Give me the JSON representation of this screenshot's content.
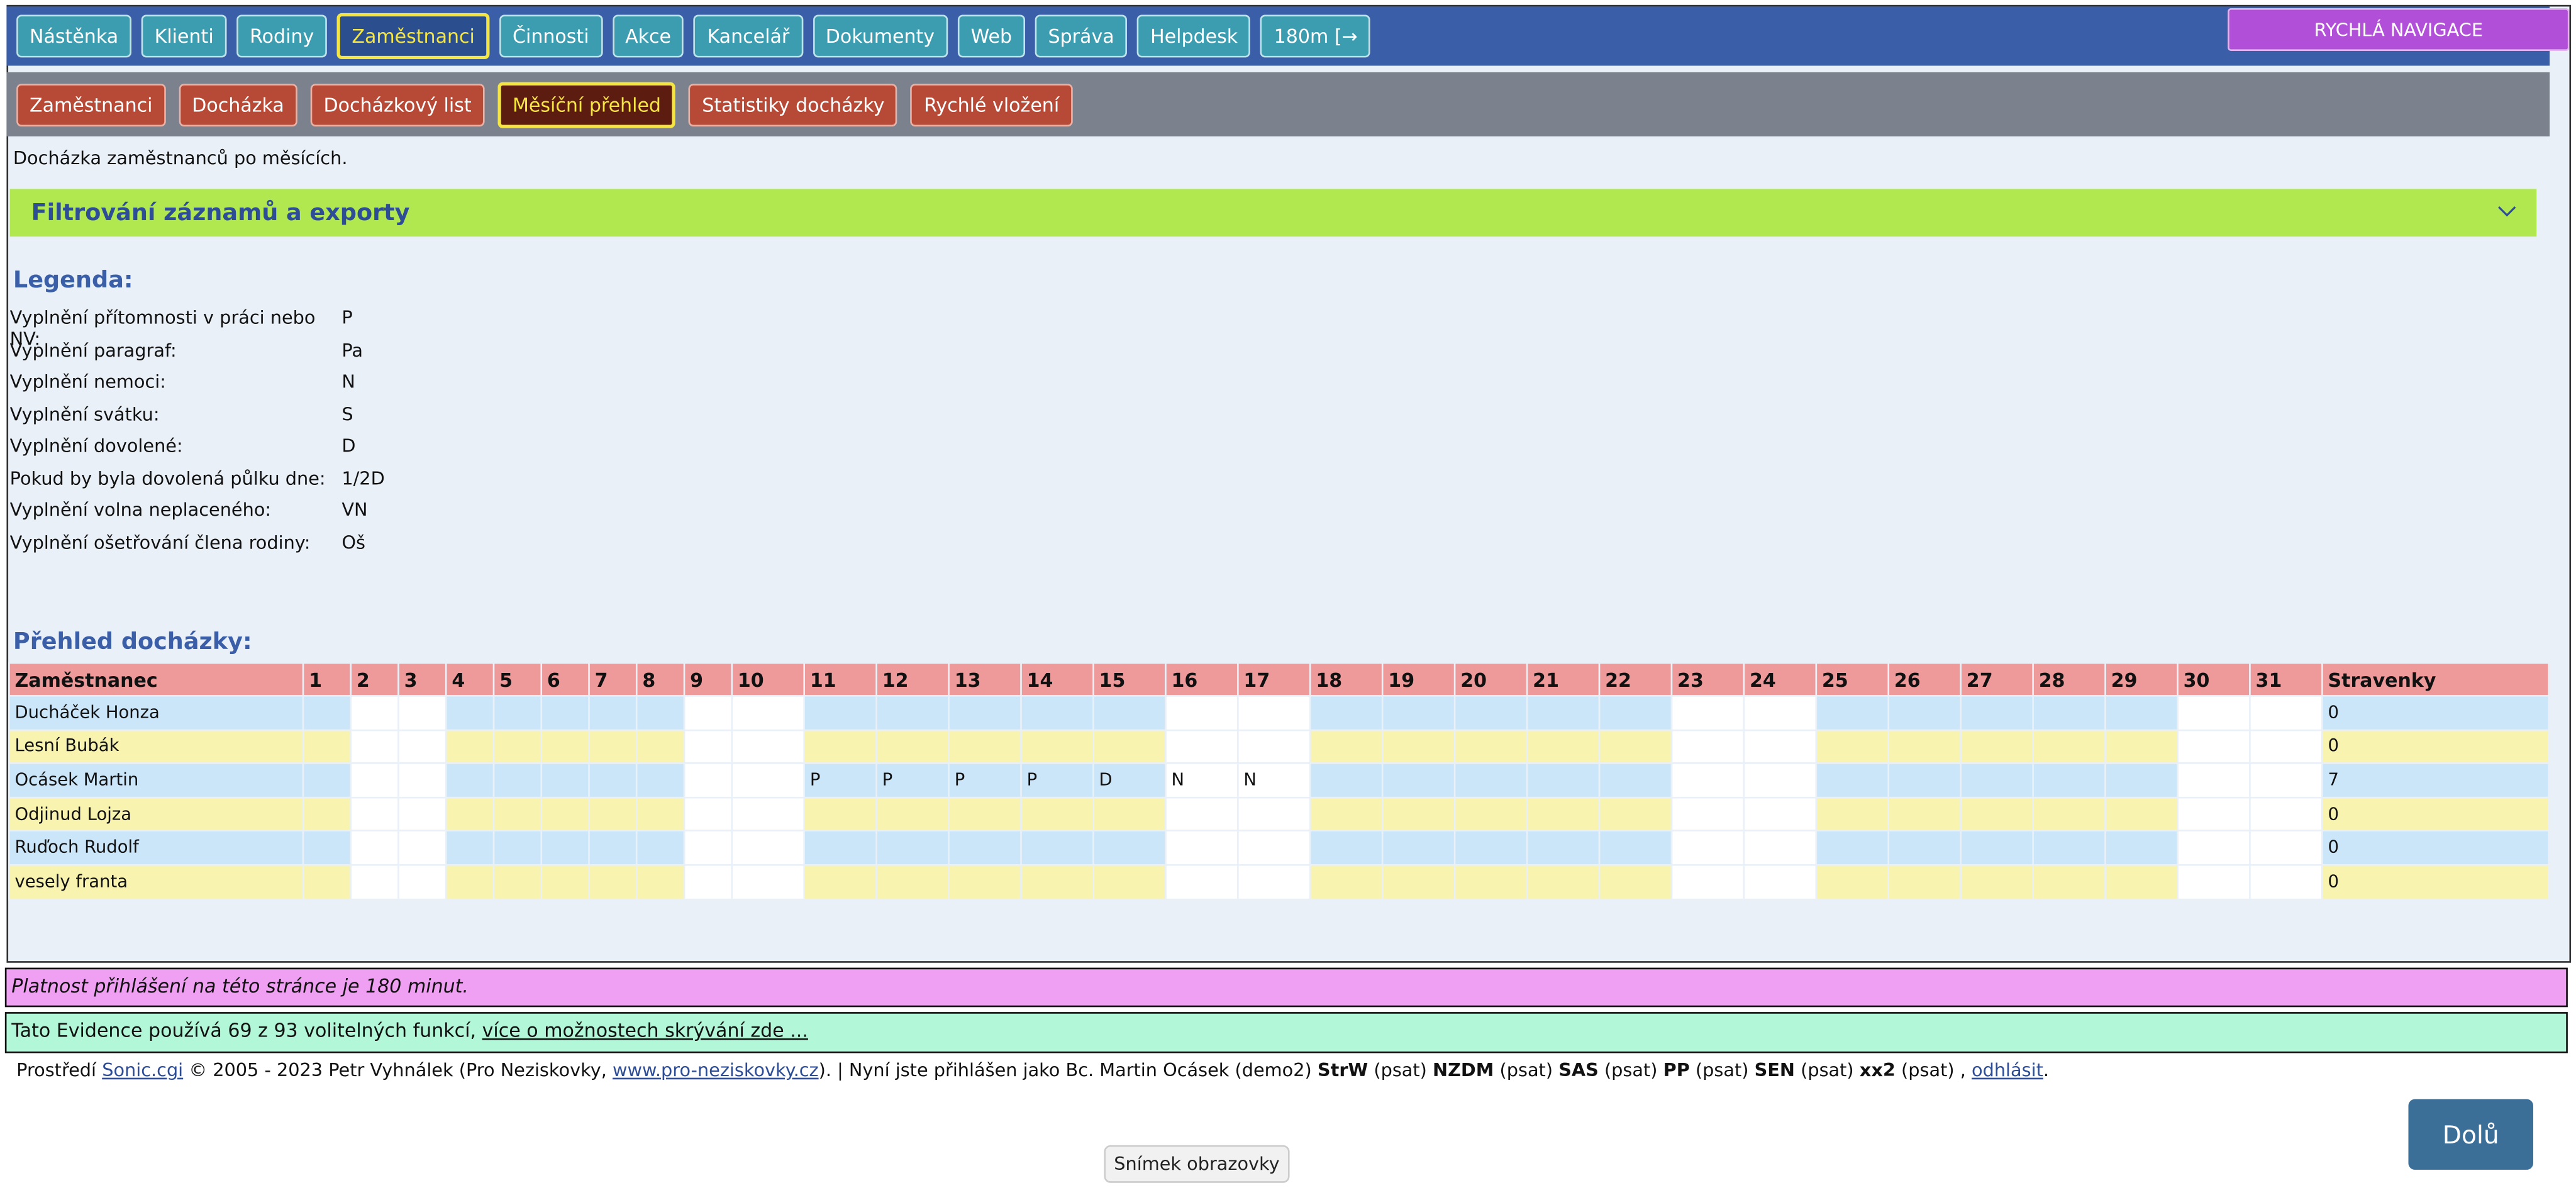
{
  "nav": {
    "items": [
      "Nástěnka",
      "Klienti",
      "Rodiny",
      "Zaměstnanci",
      "Činnosti",
      "Akce",
      "Kancelář",
      "Dokumenty",
      "Web",
      "Správa",
      "Helpdesk",
      "180m [→"
    ],
    "quick_nav": "RYCHLÁ NAVIGACE"
  },
  "subnav": {
    "items": [
      "Zaměstnanci",
      "Docházka",
      "Docházkový list",
      "Měsíční přehled",
      "Statistiky docházky",
      "Rychlé vložení"
    ]
  },
  "description": "Docházka zaměstnanců po měsících.",
  "filter_title": "Filtrování záznamů a exporty",
  "legend": {
    "title": "Legenda:",
    "rows": [
      {
        "label": "Vyplnění přítomnosti v práci nebo NV:",
        "code": "P"
      },
      {
        "label": "Vyplnění paragraf:",
        "code": "Pa"
      },
      {
        "label": "Vyplnění nemoci:",
        "code": "N"
      },
      {
        "label": "Vyplnění svátku:",
        "code": "S"
      },
      {
        "label": "Vyplnění dovolené:",
        "code": "D"
      },
      {
        "label": "Pokud by byla dovolená půlku dne:",
        "code": "1/2D"
      },
      {
        "label": "Vyplnění volna neplaceného:",
        "code": "VN"
      },
      {
        "label": "Vyplnění ošetřování člena rodiny:",
        "code": "Oš"
      }
    ]
  },
  "overview_title": "Přehled docházky:",
  "table": {
    "employee_header": "Zaměstnanec",
    "days": [
      1,
      2,
      3,
      4,
      5,
      6,
      7,
      8,
      9,
      10,
      11,
      12,
      13,
      14,
      15,
      16,
      17,
      18,
      19,
      20,
      21,
      22,
      23,
      24,
      25,
      26,
      27,
      28,
      29,
      30,
      31
    ],
    "meal_header": "Stravenky",
    "rows": [
      {
        "name": "Ducháček Honza",
        "meals": 0
      },
      {
        "name": "Lesní Bubák",
        "meals": 0
      },
      {
        "name": "Ocásek Martin",
        "entries": {
          "11": "P",
          "12": "P",
          "13": "P",
          "14": "P",
          "15": "D",
          "16": "N",
          "17": "N"
        },
        "meals": 7
      },
      {
        "name": "Odjinud Lojza",
        "meals": 0
      },
      {
        "name": "Ruďoch Rudolf",
        "meals": 0
      },
      {
        "name": "vesely franta",
        "meals": 0
      }
    ]
  },
  "session_notice": "Platnost přihlášení na této stránce je 180 minut.",
  "features": {
    "text": "Tato Evidence používá 69 z 93 volitelných funkcí,",
    "link": "více o možnostech skrývání zde ..."
  },
  "footer": {
    "prefix": "Prostředí",
    "app_link": "Sonic.cgi",
    "copyright": "© 2005 - 2023 Petr Vyhnálek (Pro Neziskovky,",
    "site_link": "www.pro-neziskovky.cz",
    "login_text": "). | Nyní jste přihlášen jako Bc. Martin Ocásek (demo2)",
    "roles": [
      {
        "code": "StrW",
        "mode": "(psat)"
      },
      {
        "code": "NZDM",
        "mode": "(psat)"
      },
      {
        "code": "SAS",
        "mode": "(psat)"
      },
      {
        "code": "PP",
        "mode": "(psat)"
      },
      {
        "code": "SEN",
        "mode": "(psat)"
      },
      {
        "code": "xx2",
        "mode": "(psat)"
      }
    ],
    "logout_prefix": ",",
    "logout_link": "odhlásit",
    "end": "."
  },
  "down_button": "Dolů",
  "tooltip": "Snímek obrazovky"
}
